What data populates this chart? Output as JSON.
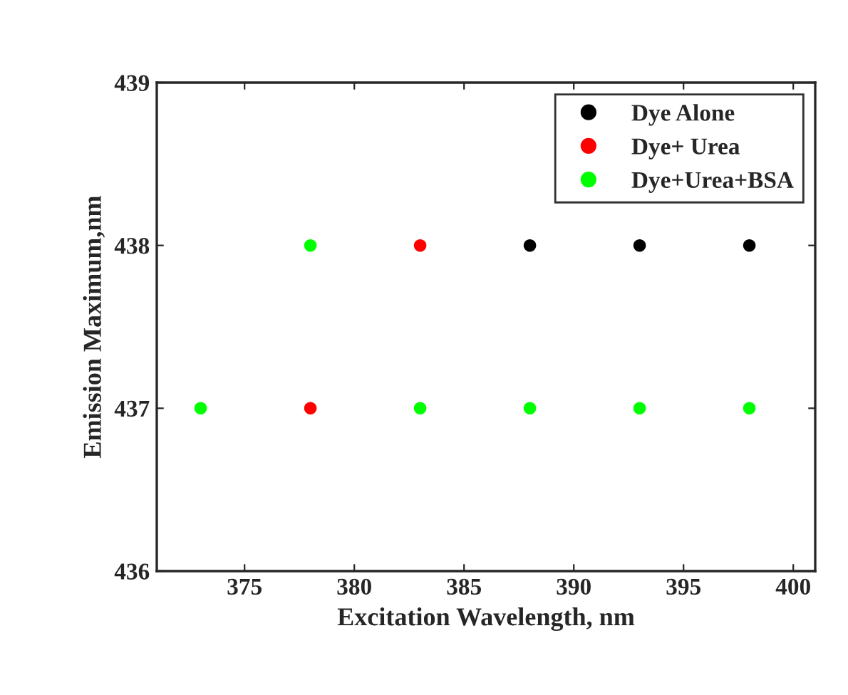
{
  "chart_data": {
    "type": "scatter",
    "xlabel": "Excitation Wavelength, nm",
    "ylabel": "Emission Maximum,nm",
    "x": [
      373,
      378,
      383,
      388,
      393,
      398
    ],
    "series": [
      {
        "name": "Dye Alone",
        "color": "#000000",
        "values": [
          null,
          null,
          null,
          438,
          438,
          438
        ]
      },
      {
        "name": "Dye+ Urea",
        "color": "#ff0000",
        "values": [
          null,
          437,
          438,
          null,
          null,
          null
        ]
      },
      {
        "name": "Dye+Urea+BSA",
        "color": "#00ff00",
        "values": [
          437,
          438,
          437,
          437,
          437,
          437
        ]
      }
    ],
    "xlim": [
      371,
      401
    ],
    "xticks": [
      375,
      380,
      385,
      390,
      395,
      400
    ],
    "ylim": [
      436,
      439
    ],
    "yticks": [
      436,
      437,
      438,
      439
    ],
    "legend": "top right",
    "marker": "circle",
    "grid": false
  }
}
